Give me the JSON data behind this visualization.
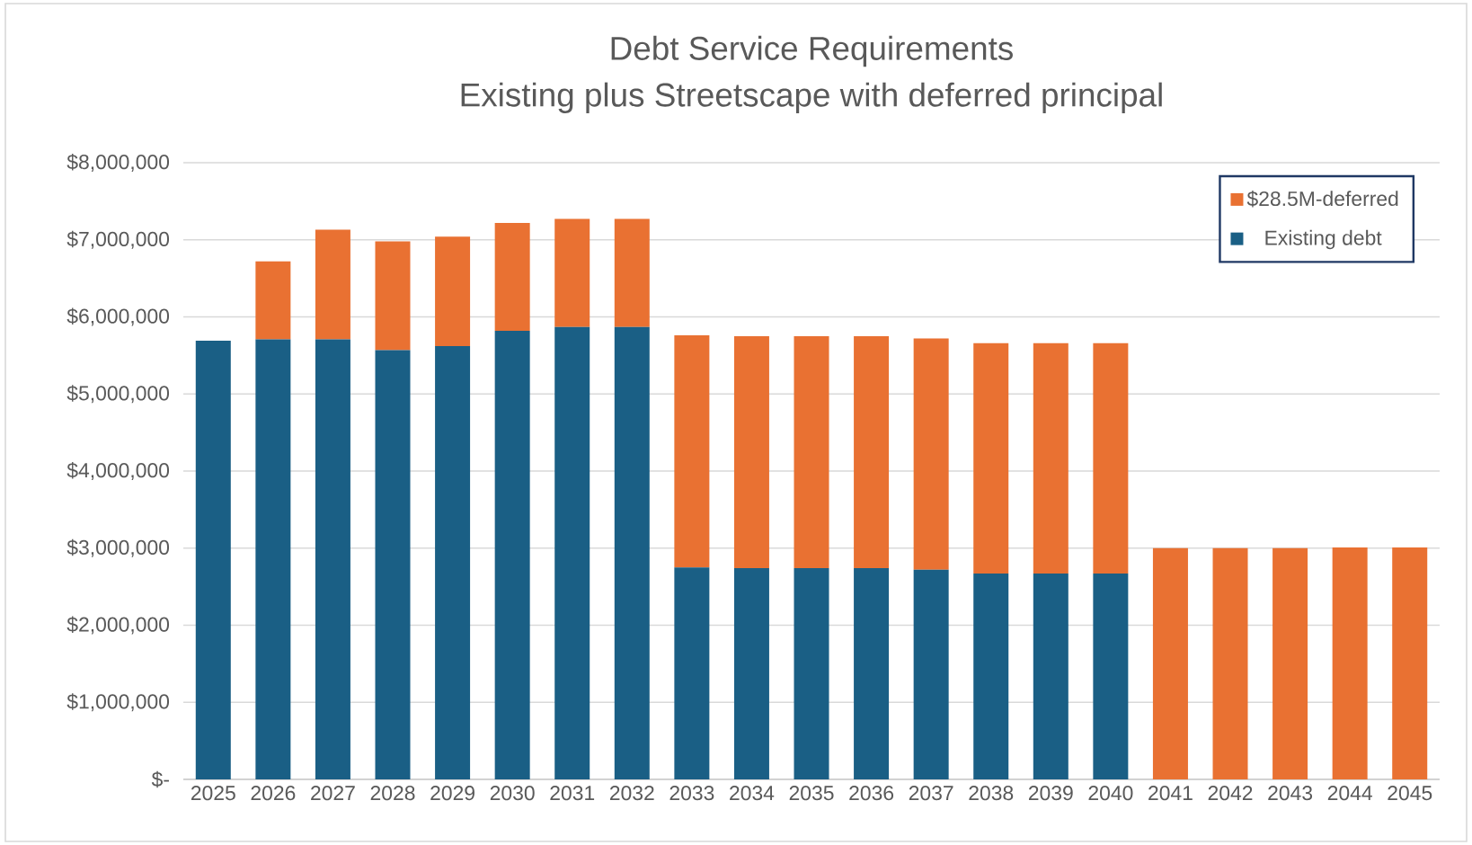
{
  "chart_data": {
    "type": "bar",
    "title": "Debt Service Requirements",
    "subtitle": "Existing plus Streetscape with deferred principal",
    "stacked": true,
    "categories": [
      "2025",
      "2026",
      "2027",
      "2028",
      "2029",
      "2030",
      "2031",
      "2032",
      "2033",
      "2034",
      "2035",
      "2036",
      "2037",
      "2038",
      "2039",
      "2040",
      "2041",
      "2042",
      "2043",
      "2044",
      "2045"
    ],
    "series": [
      {
        "name": "Existing debt",
        "color": "#1a5f85",
        "values": [
          5690000,
          5710000,
          5710000,
          5570000,
          5620000,
          5820000,
          5870000,
          5870000,
          2750000,
          2740000,
          2740000,
          2740000,
          2720000,
          2670000,
          2670000,
          2670000,
          0,
          0,
          0,
          0,
          0
        ]
      },
      {
        "name": "$28.5M-deferred",
        "color": "#e97132",
        "values": [
          0,
          1010000,
          1420000,
          1410000,
          1420000,
          1400000,
          1400000,
          1400000,
          3010000,
          3010000,
          3010000,
          3010000,
          3000000,
          2990000,
          2990000,
          2990000,
          3000000,
          3000000,
          3000000,
          3010000,
          3010000
        ]
      }
    ],
    "ylim": [
      0,
      8000000
    ],
    "yticks": [
      {
        "value": 0,
        "label": "$-"
      },
      {
        "value": 1000000,
        "label": "$1,000,000"
      },
      {
        "value": 2000000,
        "label": "$2,000,000"
      },
      {
        "value": 3000000,
        "label": "$3,000,000"
      },
      {
        "value": 4000000,
        "label": "$4,000,000"
      },
      {
        "value": 5000000,
        "label": "$5,000,000"
      },
      {
        "value": 6000000,
        "label": "$6,000,000"
      },
      {
        "value": 7000000,
        "label": "$7,000,000"
      },
      {
        "value": 8000000,
        "label": "$8,000,000"
      }
    ],
    "grid": "y",
    "legend": "top right"
  }
}
